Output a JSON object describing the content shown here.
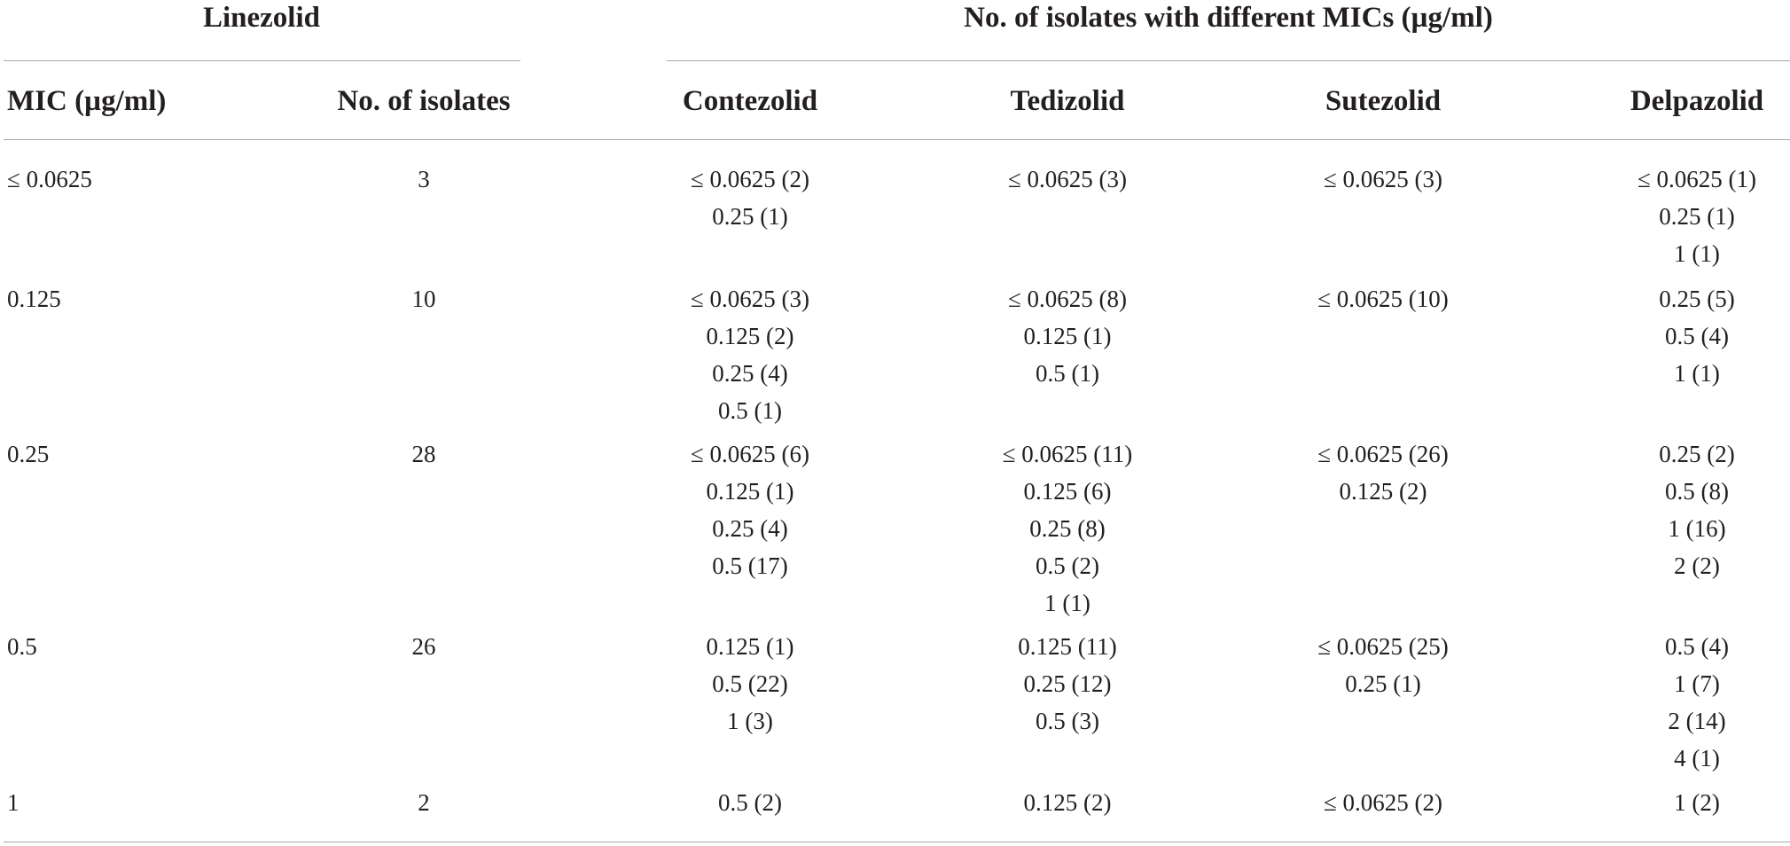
{
  "header": {
    "group_left": "Linezolid",
    "group_right": "No. of isolates with different MICs (µg/ml)",
    "columns": [
      "MIC (µg/ml)",
      "No. of isolates",
      "Contezolid",
      "Tedizolid",
      "Sutezolid",
      "Delpazolid"
    ]
  },
  "rows": [
    {
      "mic": "≤ 0.0625",
      "isolates": "3",
      "contezolid": [
        "≤ 0.0625 (2)",
        "0.25 (1)"
      ],
      "tedizolid": [
        "≤ 0.0625 (3)"
      ],
      "sutezolid": [
        "≤ 0.0625 (3)"
      ],
      "delpazolid": [
        "≤ 0.0625 (1)",
        "0.25 (1)",
        "1 (1)"
      ]
    },
    {
      "mic": "0.125",
      "isolates": "10",
      "contezolid": [
        "≤ 0.0625 (3)",
        "0.125 (2)",
        "0.25 (4)",
        "0.5 (1)"
      ],
      "tedizolid": [
        "≤ 0.0625 (8)",
        "0.125 (1)",
        "0.5 (1)"
      ],
      "sutezolid": [
        "≤ 0.0625 (10)"
      ],
      "delpazolid": [
        "0.25 (5)",
        "0.5 (4)",
        "1 (1)"
      ]
    },
    {
      "mic": "0.25",
      "isolates": "28",
      "contezolid": [
        "≤ 0.0625 (6)",
        "0.125 (1)",
        "0.25 (4)",
        "0.5 (17)"
      ],
      "tedizolid": [
        "≤ 0.0625 (11)",
        "0.125 (6)",
        "0.25 (8)",
        "0.5 (2)",
        "1 (1)"
      ],
      "sutezolid": [
        "≤ 0.0625 (26)",
        "0.125 (2)"
      ],
      "delpazolid": [
        "0.25 (2)",
        "0.5 (8)",
        "1 (16)",
        "2 (2)"
      ]
    },
    {
      "mic": "0.5",
      "isolates": "26",
      "contezolid": [
        "0.125 (1)",
        "0.5 (22)",
        "1 (3)"
      ],
      "tedizolid": [
        "0.125 (11)",
        "0.25 (12)",
        "0.5 (3)"
      ],
      "sutezolid": [
        "≤ 0.0625 (25)",
        "0.25 (1)"
      ],
      "delpazolid": [
        "0.5 (4)",
        "1 (7)",
        "2 (14)",
        "4 (1)"
      ]
    },
    {
      "mic": "1",
      "isolates": "2",
      "contezolid": [
        "0.5 (2)"
      ],
      "tedizolid": [
        "0.125 (2)"
      ],
      "sutezolid": [
        "≤ 0.0625 (2)"
      ],
      "delpazolid": [
        "1 (2)"
      ]
    }
  ]
}
